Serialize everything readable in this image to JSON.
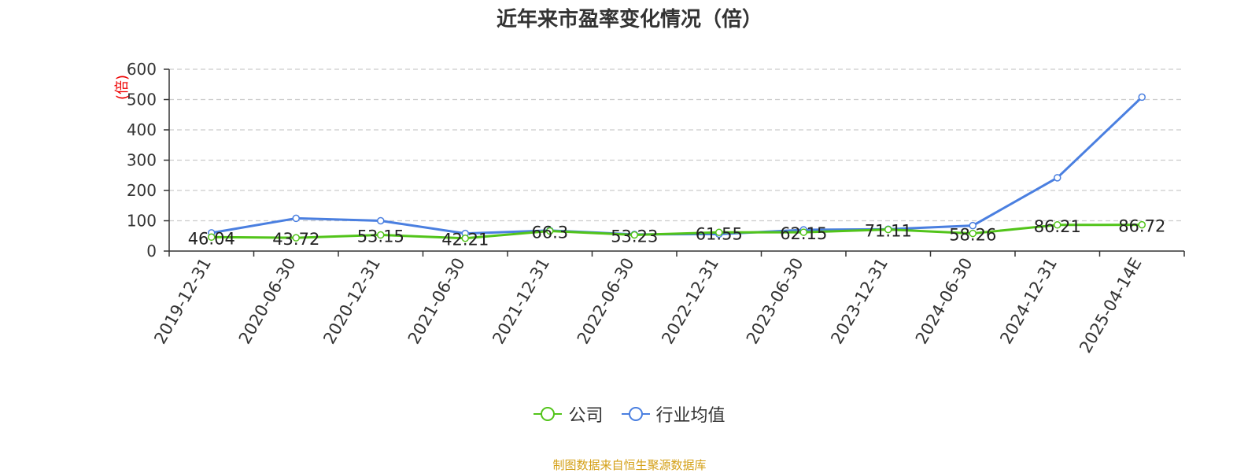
{
  "chart_data": {
    "type": "line",
    "title": "近年来市盈率变化情况（倍）",
    "ylabel": "(倍)",
    "ylim": [
      0,
      600
    ],
    "yticks": [
      0,
      100,
      200,
      300,
      400,
      500,
      600
    ],
    "grid": true,
    "legend_position": "bottom",
    "categories": [
      "2019-12-31",
      "2020-06-30",
      "2020-12-31",
      "2021-06-30",
      "2021-12-31",
      "2022-06-30",
      "2022-12-31",
      "2023-06-30",
      "2023-12-31",
      "2024-06-30",
      "2024-12-31",
      "2025-04-14E"
    ],
    "series": [
      {
        "name": "公司",
        "color": "#52c41a",
        "values": [
          46.04,
          43.72,
          53.15,
          42.21,
          66.3,
          53.23,
          61.55,
          62.15,
          71.11,
          58.26,
          86.21,
          86.72
        ],
        "labels": [
          "46.04",
          "43.72",
          "53.15",
          "42.21",
          "66.3",
          "53.23",
          "61.55",
          "62.15",
          "71.11",
          "58.26",
          "86.21",
          "86.72"
        ]
      },
      {
        "name": "行业均值",
        "color": "#4a7fe0",
        "values": [
          60,
          108,
          100,
          58,
          68,
          55,
          56,
          70,
          72,
          84,
          242,
          508
        ]
      }
    ]
  },
  "source_text": "制图数据来自恒生聚源数据库",
  "colors": {
    "ylabel": "#ee0000",
    "source": "#d4a017",
    "grid": "#cccccc",
    "axis": "#333333"
  }
}
